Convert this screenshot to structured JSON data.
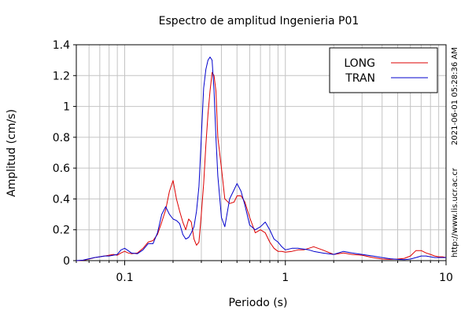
{
  "chart_data": {
    "type": "line",
    "title": "Espectro de amplitud Ingenieria P01",
    "xlabel": "Periodo (s)",
    "ylabel": "Amplitud (cm/s)",
    "x_scale": "log",
    "xlim": [
      0.05,
      10
    ],
    "ylim": [
      0,
      1.4
    ],
    "x_ticks": [
      {
        "value": 0.1,
        "label": "0.1"
      },
      {
        "value": 1,
        "label": "1"
      },
      {
        "value": 10,
        "label": "10"
      }
    ],
    "y_ticks": [
      {
        "value": 0,
        "label": "0"
      },
      {
        "value": 0.2,
        "label": "0.2"
      },
      {
        "value": 0.4,
        "label": "0.4"
      },
      {
        "value": 0.6,
        "label": "0.6"
      },
      {
        "value": 0.8,
        "label": "0.8"
      },
      {
        "value": 1.0,
        "label": "1"
      },
      {
        "value": 1.2,
        "label": "1.2"
      },
      {
        "value": 1.4,
        "label": "1.4"
      }
    ],
    "grid": true,
    "legend_position": "top-right",
    "series": [
      {
        "name": "LONG",
        "color": "#dd0000",
        "points": [
          [
            0.05,
            0.0
          ],
          [
            0.055,
            0.002
          ],
          [
            0.06,
            0.01
          ],
          [
            0.065,
            0.02
          ],
          [
            0.07,
            0.025
          ],
          [
            0.075,
            0.03
          ],
          [
            0.08,
            0.035
          ],
          [
            0.085,
            0.04
          ],
          [
            0.09,
            0.035
          ],
          [
            0.095,
            0.05
          ],
          [
            0.1,
            0.06
          ],
          [
            0.105,
            0.05
          ],
          [
            0.11,
            0.045
          ],
          [
            0.12,
            0.05
          ],
          [
            0.13,
            0.08
          ],
          [
            0.14,
            0.12
          ],
          [
            0.15,
            0.13
          ],
          [
            0.16,
            0.17
          ],
          [
            0.17,
            0.25
          ],
          [
            0.18,
            0.33
          ],
          [
            0.19,
            0.45
          ],
          [
            0.2,
            0.52
          ],
          [
            0.21,
            0.4
          ],
          [
            0.22,
            0.32
          ],
          [
            0.23,
            0.25
          ],
          [
            0.24,
            0.2
          ],
          [
            0.25,
            0.27
          ],
          [
            0.26,
            0.25
          ],
          [
            0.27,
            0.14
          ],
          [
            0.28,
            0.1
          ],
          [
            0.29,
            0.12
          ],
          [
            0.3,
            0.3
          ],
          [
            0.31,
            0.5
          ],
          [
            0.32,
            0.75
          ],
          [
            0.33,
            0.95
          ],
          [
            0.34,
            1.1
          ],
          [
            0.35,
            1.22
          ],
          [
            0.36,
            1.2
          ],
          [
            0.37,
            1.1
          ],
          [
            0.38,
            0.8
          ],
          [
            0.4,
            0.6
          ],
          [
            0.42,
            0.4
          ],
          [
            0.45,
            0.37
          ],
          [
            0.48,
            0.38
          ],
          [
            0.5,
            0.42
          ],
          [
            0.53,
            0.42
          ],
          [
            0.56,
            0.38
          ],
          [
            0.6,
            0.28
          ],
          [
            0.65,
            0.18
          ],
          [
            0.7,
            0.2
          ],
          [
            0.75,
            0.18
          ],
          [
            0.8,
            0.12
          ],
          [
            0.85,
            0.08
          ],
          [
            0.9,
            0.06
          ],
          [
            0.95,
            0.06
          ],
          [
            1.0,
            0.055
          ],
          [
            1.1,
            0.06
          ],
          [
            1.2,
            0.07
          ],
          [
            1.3,
            0.07
          ],
          [
            1.4,
            0.08
          ],
          [
            1.5,
            0.09
          ],
          [
            1.7,
            0.07
          ],
          [
            2.0,
            0.04
          ],
          [
            2.3,
            0.05
          ],
          [
            2.6,
            0.04
          ],
          [
            3.0,
            0.035
          ],
          [
            3.5,
            0.02
          ],
          [
            4.0,
            0.01
          ],
          [
            4.5,
            0.008
          ],
          [
            5.0,
            0.01
          ],
          [
            5.5,
            0.015
          ],
          [
            6.0,
            0.03
          ],
          [
            6.5,
            0.065
          ],
          [
            7.0,
            0.065
          ],
          [
            7.5,
            0.05
          ],
          [
            8.0,
            0.04
          ],
          [
            8.5,
            0.03
          ],
          [
            9.0,
            0.025
          ],
          [
            9.5,
            0.025
          ],
          [
            10.0,
            0.02
          ]
        ]
      },
      {
        "name": "TRAN",
        "color": "#0000cc",
        "points": [
          [
            0.05,
            0.0
          ],
          [
            0.055,
            0.003
          ],
          [
            0.06,
            0.012
          ],
          [
            0.065,
            0.02
          ],
          [
            0.07,
            0.025
          ],
          [
            0.075,
            0.03
          ],
          [
            0.08,
            0.03
          ],
          [
            0.085,
            0.035
          ],
          [
            0.09,
            0.04
          ],
          [
            0.095,
            0.07
          ],
          [
            0.1,
            0.08
          ],
          [
            0.105,
            0.065
          ],
          [
            0.11,
            0.05
          ],
          [
            0.12,
            0.045
          ],
          [
            0.13,
            0.07
          ],
          [
            0.14,
            0.11
          ],
          [
            0.15,
            0.11
          ],
          [
            0.16,
            0.18
          ],
          [
            0.17,
            0.3
          ],
          [
            0.18,
            0.35
          ],
          [
            0.19,
            0.3
          ],
          [
            0.2,
            0.27
          ],
          [
            0.21,
            0.26
          ],
          [
            0.22,
            0.24
          ],
          [
            0.23,
            0.17
          ],
          [
            0.24,
            0.14
          ],
          [
            0.25,
            0.15
          ],
          [
            0.26,
            0.18
          ],
          [
            0.27,
            0.22
          ],
          [
            0.28,
            0.32
          ],
          [
            0.29,
            0.48
          ],
          [
            0.3,
            0.8
          ],
          [
            0.31,
            1.12
          ],
          [
            0.32,
            1.24
          ],
          [
            0.33,
            1.3
          ],
          [
            0.34,
            1.32
          ],
          [
            0.35,
            1.3
          ],
          [
            0.36,
            1.1
          ],
          [
            0.37,
            0.8
          ],
          [
            0.38,
            0.55
          ],
          [
            0.4,
            0.28
          ],
          [
            0.42,
            0.22
          ],
          [
            0.45,
            0.4
          ],
          [
            0.48,
            0.46
          ],
          [
            0.5,
            0.5
          ],
          [
            0.53,
            0.45
          ],
          [
            0.56,
            0.36
          ],
          [
            0.6,
            0.23
          ],
          [
            0.65,
            0.2
          ],
          [
            0.7,
            0.22
          ],
          [
            0.75,
            0.25
          ],
          [
            0.8,
            0.2
          ],
          [
            0.85,
            0.14
          ],
          [
            0.9,
            0.12
          ],
          [
            0.95,
            0.09
          ],
          [
            1.0,
            0.07
          ],
          [
            1.1,
            0.08
          ],
          [
            1.2,
            0.08
          ],
          [
            1.3,
            0.075
          ],
          [
            1.4,
            0.07
          ],
          [
            1.5,
            0.06
          ],
          [
            1.7,
            0.05
          ],
          [
            2.0,
            0.04
          ],
          [
            2.3,
            0.06
          ],
          [
            2.6,
            0.05
          ],
          [
            3.0,
            0.04
          ],
          [
            3.5,
            0.03
          ],
          [
            4.0,
            0.02
          ],
          [
            4.5,
            0.012
          ],
          [
            5.0,
            0.008
          ],
          [
            5.5,
            0.006
          ],
          [
            6.0,
            0.01
          ],
          [
            6.5,
            0.02
          ],
          [
            7.0,
            0.03
          ],
          [
            7.5,
            0.03
          ],
          [
            8.0,
            0.025
          ],
          [
            8.5,
            0.02
          ],
          [
            9.0,
            0.02
          ],
          [
            9.5,
            0.02
          ],
          [
            10.0,
            0.02
          ]
        ]
      }
    ]
  },
  "side_info": {
    "timestamp": "2021-06-01 05:28:36 AM",
    "url": "http://www.lis.ucr.ac.cr"
  }
}
